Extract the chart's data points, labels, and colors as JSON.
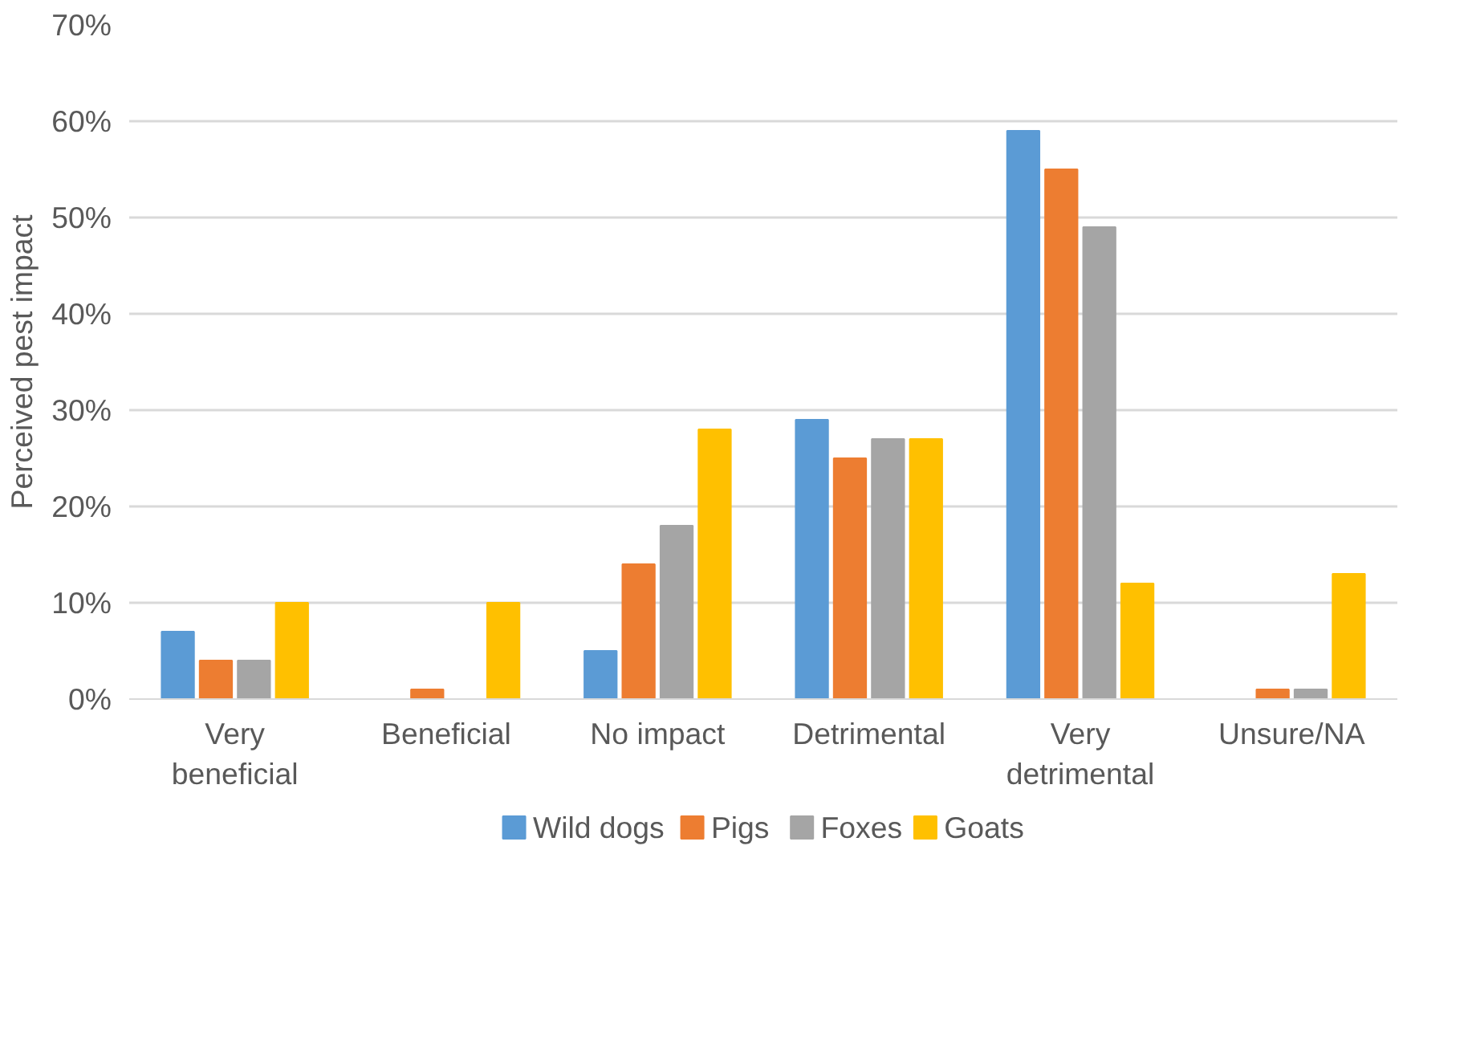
{
  "chart_data": {
    "type": "bar",
    "ylabel": "Perceived pest impact",
    "categories": [
      "Very beneficial",
      "Beneficial",
      "No impact",
      "Detrimental",
      "Very detrimental",
      "Unsure/NA"
    ],
    "series": [
      {
        "name": "Wild dogs",
        "color": "#5b9bd5",
        "values": [
          7,
          0,
          5,
          29,
          59,
          0
        ]
      },
      {
        "name": "Pigs",
        "color": "#ed7d31",
        "values": [
          4,
          1,
          14,
          25,
          55,
          1
        ]
      },
      {
        "name": "Foxes",
        "color": "#a5a5a5",
        "values": [
          4,
          0,
          18,
          27,
          49,
          1
        ]
      },
      {
        "name": "Goats",
        "color": "#ffc000",
        "values": [
          10,
          10,
          28,
          27,
          12,
          13
        ]
      }
    ],
    "ylim": [
      0,
      70
    ],
    "yticks": [
      {
        "value": 0,
        "label": "0%"
      },
      {
        "value": 10,
        "label": "10%"
      },
      {
        "value": 20,
        "label": "20%"
      },
      {
        "value": 30,
        "label": "30%"
      },
      {
        "value": 40,
        "label": "40%"
      },
      {
        "value": 50,
        "label": "50%"
      },
      {
        "value": 60,
        "label": "60%"
      },
      {
        "value": 70,
        "label": "70%"
      }
    ],
    "grid": "y",
    "legend": "bottom"
  }
}
